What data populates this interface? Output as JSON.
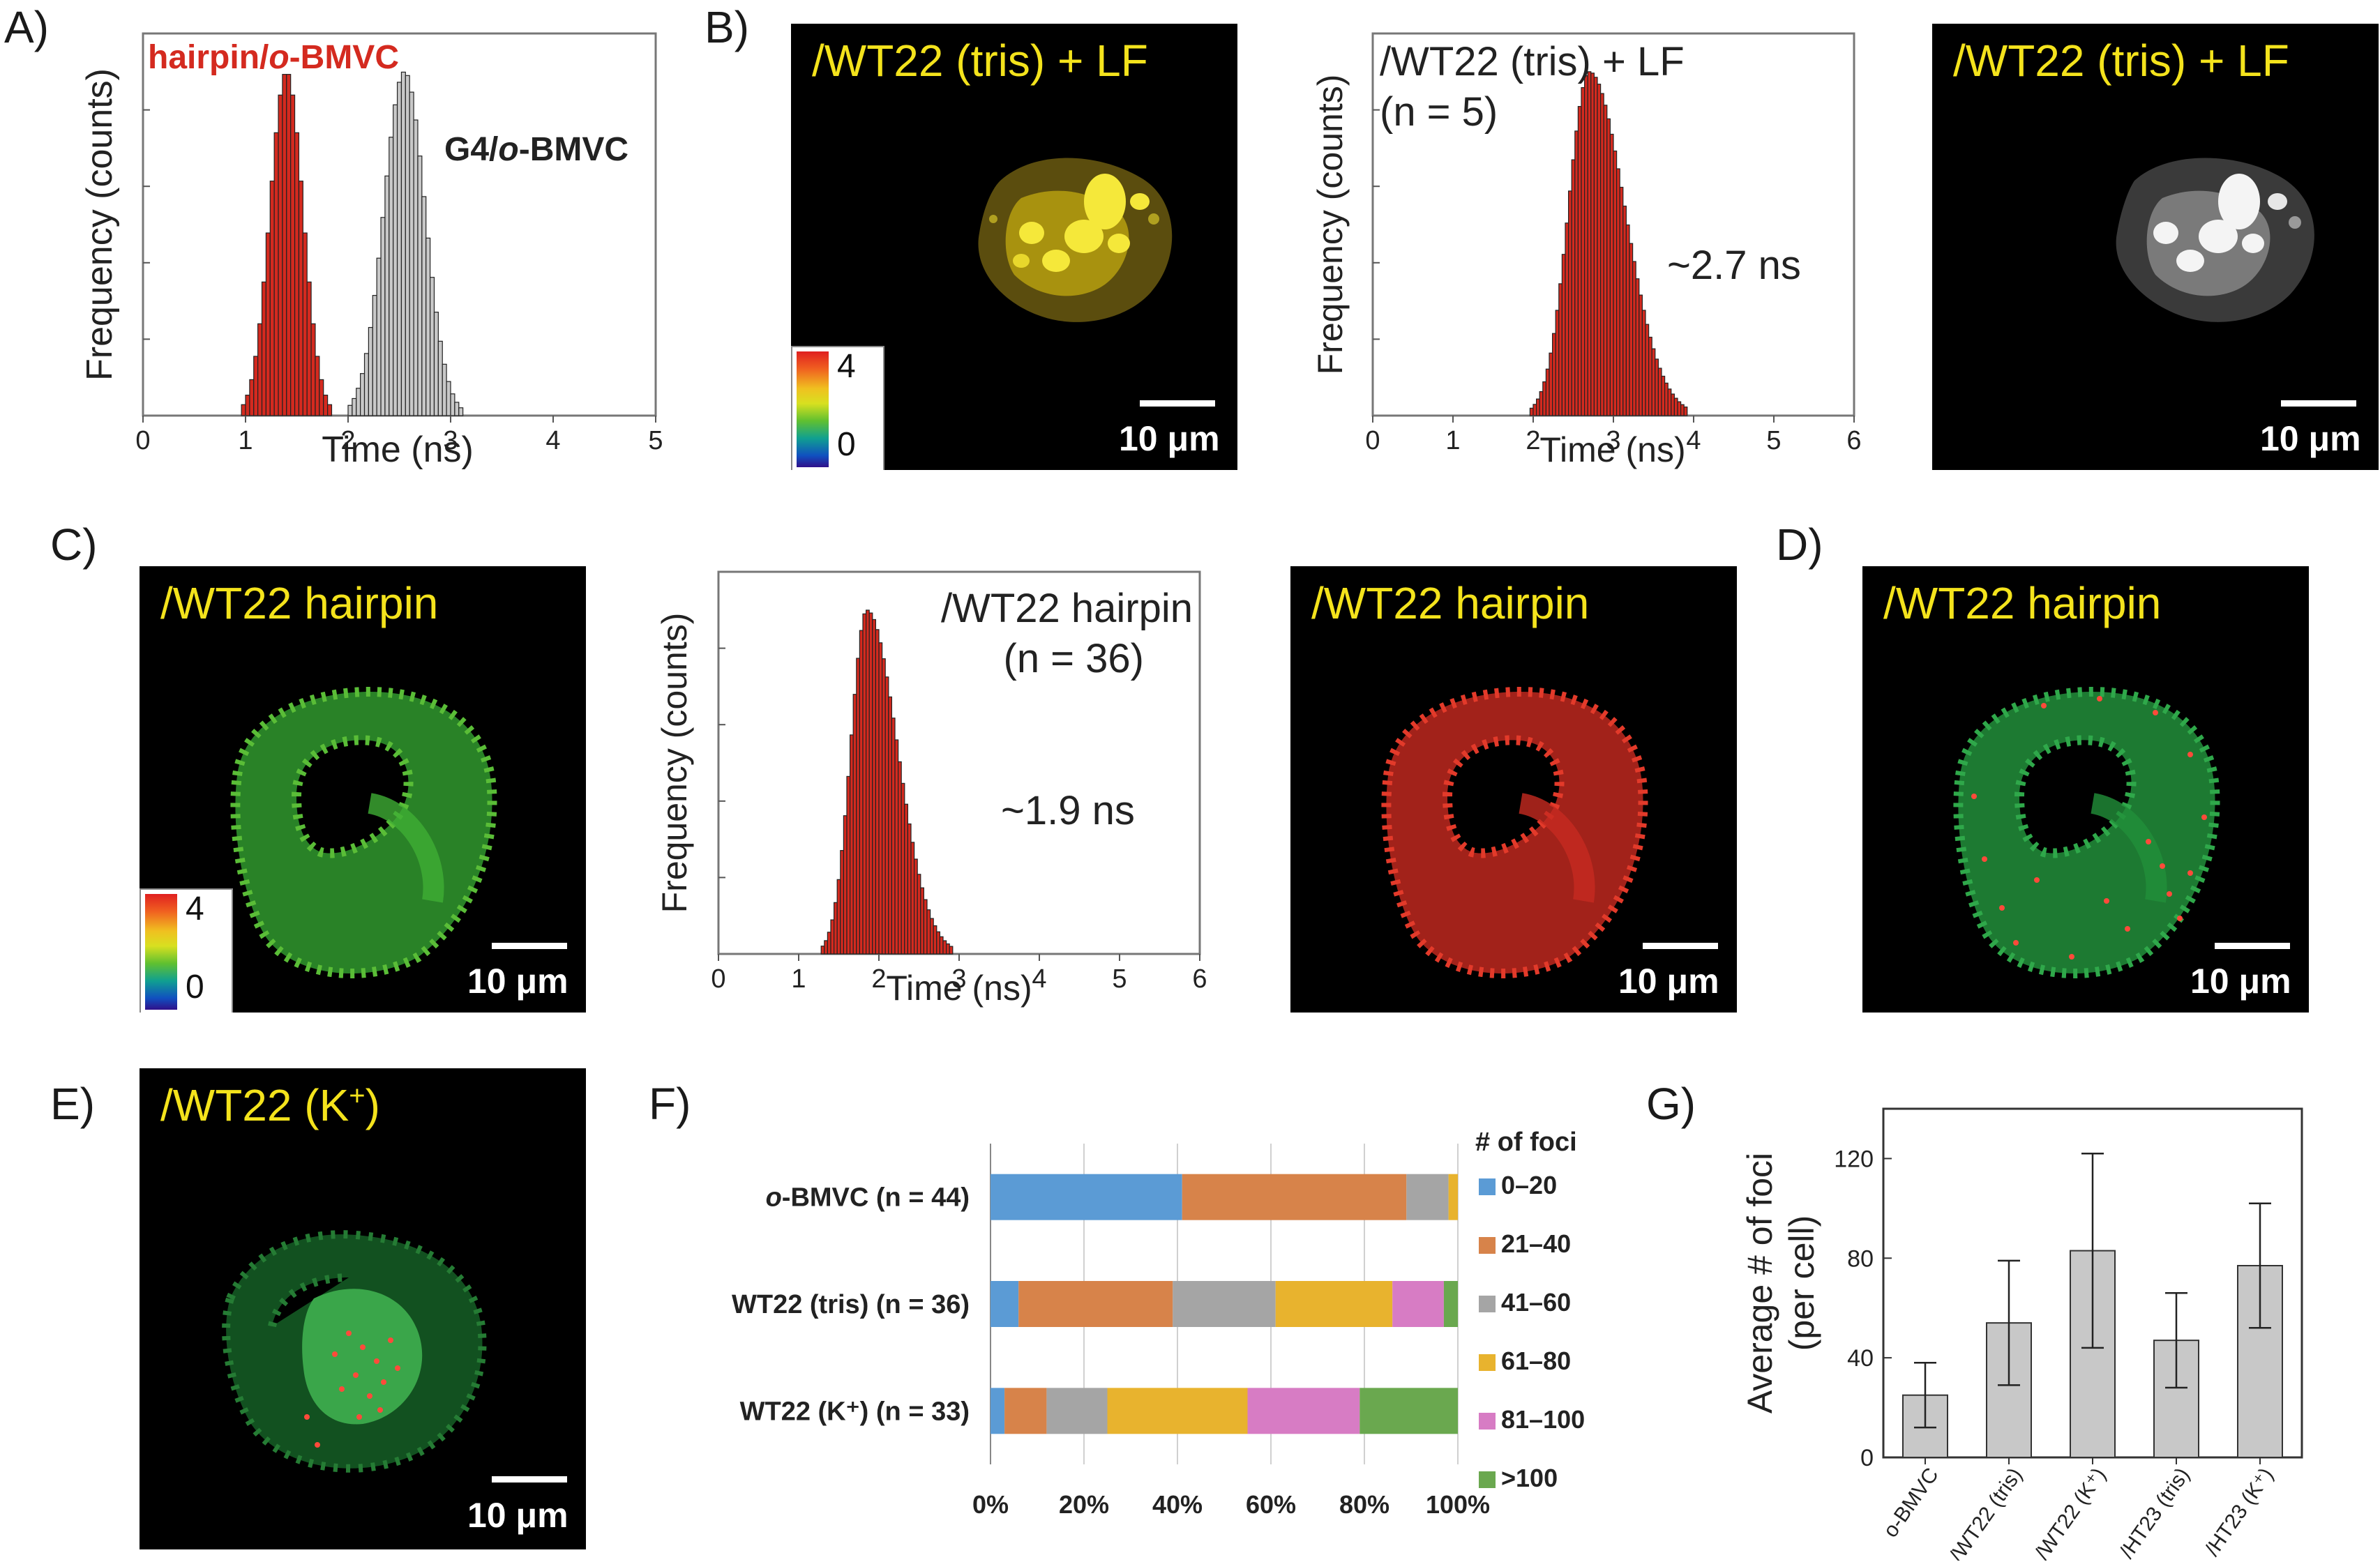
{
  "panel_letters": {
    "A": "A)",
    "B": "B)",
    "C": "C)",
    "D": "D)",
    "E": "E)",
    "F": "F)",
    "G": "G)"
  },
  "colors": {
    "red": "#d42a1f",
    "gray": "#b8b8b8",
    "yellow": "#f4e31c",
    "green": "#1f9a3c",
    "orange": "#d48a4a"
  },
  "chart_data": [
    {
      "id": "A",
      "type": "bar",
      "title": "",
      "xlabel": "Time (ns)",
      "ylabel": "Frequency (counts)",
      "xlim": [
        0,
        5
      ],
      "xticks": [
        "0",
        "1",
        "2",
        "3",
        "4",
        "5"
      ],
      "series": [
        {
          "name": "hairpin/o-BMVC",
          "label_prefix": "hairpin/",
          "label_italic": "o",
          "label_suffix": "-BMVC",
          "color": "#d42a1f",
          "mean": 1.4,
          "sd": 0.16
        },
        {
          "name": "G4/o-BMVC",
          "label_prefix": "G4/",
          "label_italic": "o",
          "label_suffix": "-BMVC",
          "color": "#c8c8c8",
          "mean": 2.55,
          "sd": 0.2
        }
      ]
    },
    {
      "id": "B",
      "type": "bar",
      "xlabel": "Time (ns)",
      "ylabel": "Frequency (counts)",
      "xlim": [
        0,
        6
      ],
      "xticks": [
        "0",
        "1",
        "2",
        "3",
        "4",
        "5",
        "6"
      ],
      "label_line1": "/WT22 (tris) + LF",
      "label_line2": "(n = 5)",
      "annotation": "~2.7 ns",
      "mean": 2.7,
      "sd": 0.26,
      "tail": 0.35
    },
    {
      "id": "C",
      "type": "bar",
      "xlabel": "Time (ns)",
      "ylabel": "Frequency (counts)",
      "xlim": [
        0,
        6
      ],
      "xticks": [
        "0",
        "1",
        "2",
        "3",
        "4",
        "5",
        "6"
      ],
      "label_line1": "/WT22 hairpin",
      "label_line2": "(n = 36)",
      "annotation": "~1.9 ns",
      "mean": 1.85,
      "sd": 0.2,
      "tail": 0.45
    },
    {
      "id": "F",
      "type": "bar",
      "orientation": "horizontal-stacked",
      "legend_title": "# of foci",
      "categories": [
        {
          "italic": "o",
          "rest": "-BMVC (n = 44)"
        },
        {
          "italic": "",
          "rest": "WT22 (tris) (n = 36)"
        },
        {
          "italic": "",
          "rest": "WT22 (K⁺) (n = 33)"
        }
      ],
      "xticks": [
        "0%",
        "20%",
        "40%",
        "60%",
        "80%",
        "100%"
      ],
      "series": [
        {
          "name": "0–20",
          "color": "#5b9bd5",
          "values": [
            41,
            6,
            3
          ]
        },
        {
          "name": "21–40",
          "color": "#d7834a",
          "values": [
            48,
            33,
            9
          ]
        },
        {
          "name": "41–60",
          "color": "#a5a5a5",
          "values": [
            9,
            22,
            13
          ]
        },
        {
          "name": "61–80",
          "color": "#e8b32e",
          "values": [
            2,
            25,
            30
          ]
        },
        {
          "name": "81–100",
          "color": "#d77cc4",
          "values": [
            0,
            11,
            24
          ]
        },
        {
          "name": ">100",
          "color": "#6aa84f",
          "values": [
            0,
            3,
            21
          ]
        }
      ]
    },
    {
      "id": "G",
      "type": "bar",
      "ylabel_line1": "Average # of foci",
      "ylabel_line2": "(per cell)",
      "ylim": [
        0,
        140
      ],
      "yticks": [
        "0",
        "40",
        "80",
        "120"
      ],
      "categories": [
        "o-BMVC",
        "/WT22 (tris)",
        "/WT22 (K⁺)",
        "/HT23 (tris)",
        "/HT23 (K⁺)"
      ],
      "values": [
        25,
        54,
        83,
        47,
        77
      ],
      "errors": [
        13,
        25,
        39,
        19,
        25
      ]
    }
  ],
  "images": {
    "b_left": {
      "title": "/WT22 (tris) + LF",
      "scale": "10 μm",
      "cbar_max": "4",
      "cbar_min": "0"
    },
    "b_right": {
      "title": "/WT22 (tris) + LF",
      "scale": "10 μm"
    },
    "c_left": {
      "title": "/WT22 hairpin",
      "scale": "10 μm",
      "cbar_max": "4",
      "cbar_min": "0"
    },
    "c_right": {
      "title": "/WT22 hairpin",
      "scale": "10 μm"
    },
    "d": {
      "title": "/WT22 hairpin",
      "scale": "10 μm"
    },
    "e": {
      "title_main": "/WT22 (K",
      "title_sup": "+",
      "title_end": ")",
      "scale": "10 μm"
    }
  }
}
